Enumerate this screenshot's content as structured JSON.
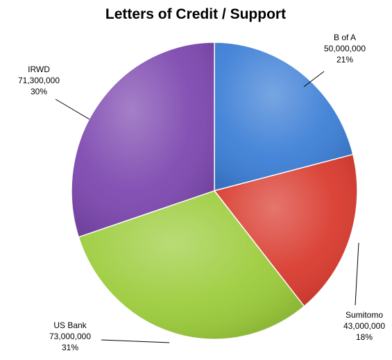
{
  "chart_data": {
    "type": "pie",
    "title": "Letters of Credit / Support",
    "slices": [
      {
        "label": "B of A",
        "value": 50000000,
        "value_text": "50,000,000",
        "percent_text": "21%",
        "color": "#3d7fd6"
      },
      {
        "label": "Sumitomo",
        "value": 43000000,
        "value_text": "43,000,000",
        "percent_text": "18%",
        "color": "#d93b2f"
      },
      {
        "label": "US Bank",
        "value": 73000000,
        "value_text": "73,000,000",
        "percent_text": "31%",
        "color": "#9ccc3c"
      },
      {
        "label": "IRWD",
        "value": 71300000,
        "value_text": "71,300,000",
        "percent_text": "30%",
        "color": "#7e49b0"
      }
    ],
    "legend": "none",
    "start_angle": "12 o'clock, clockwise"
  }
}
